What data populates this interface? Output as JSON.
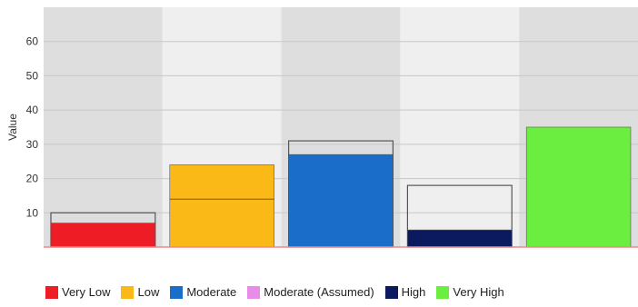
{
  "chart_data": {
    "type": "bar",
    "ylabel": "Value",
    "ylim": [
      0,
      70
    ],
    "yticks": [
      10,
      20,
      30,
      40,
      50,
      60
    ],
    "grid": true,
    "legend_position": "bottom",
    "categories": [
      "Very Low",
      "Low",
      "Moderate",
      "High",
      "Very High"
    ],
    "series": [
      {
        "name": "Very Low",
        "value": 7,
        "outline_value": 10,
        "color": "#ee1c24"
      },
      {
        "name": "Low",
        "value": 24,
        "outline_value": 24,
        "inner_line": 14,
        "color": "#fbb917"
      },
      {
        "name": "Moderate",
        "value": 27,
        "outline_value": 31,
        "color": "#1a6dc8"
      },
      {
        "name": "High",
        "value": 5,
        "outline_value": 18,
        "color": "#0b1a5e"
      },
      {
        "name": "Very High",
        "value": 35,
        "outline_value": 35,
        "color": "#6bee3f"
      }
    ],
    "legend": [
      {
        "label": "Very Low",
        "color": "#ee1c24"
      },
      {
        "label": "Low",
        "color": "#fbb917"
      },
      {
        "label": "Moderate",
        "color": "#1a6dc8"
      },
      {
        "label": "Moderate (Assumed)",
        "color": "#e98be8"
      },
      {
        "label": "High",
        "color": "#0b1a5e"
      },
      {
        "label": "Very High",
        "color": "#6bee3f"
      }
    ]
  }
}
